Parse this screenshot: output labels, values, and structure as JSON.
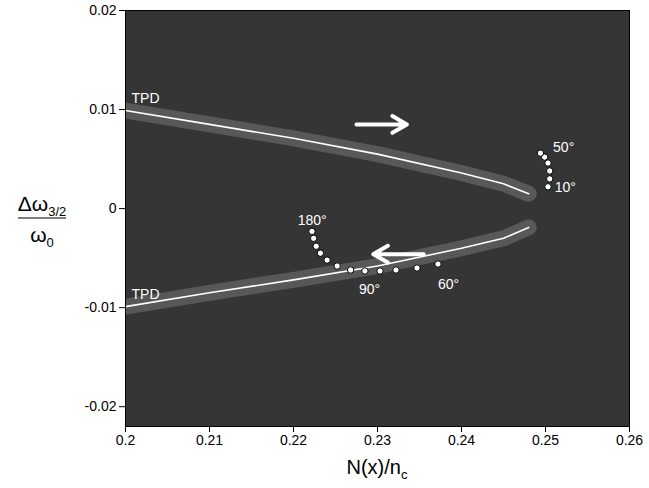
{
  "chart_data": {
    "type": "line",
    "xlabel": {
      "text": "N(x)/n",
      "sub": "c"
    },
    "ylabel": {
      "numerator": "Δω",
      "numerator_sub": "3/2",
      "denominator": "ω",
      "denominator_sub": "0"
    },
    "xlim": [
      0.2,
      0.26
    ],
    "xticks": [
      0.2,
      0.21,
      0.22,
      0.23,
      0.24,
      0.25,
      0.26
    ],
    "ylim": [
      -0.022,
      0.02
    ],
    "yticks": [
      -0.02,
      -0.01,
      0,
      0.01,
      0.02
    ],
    "grid": false,
    "series": [
      {
        "name": "TPD",
        "type": "line",
        "color": "#ffffff",
        "line_style": "solid",
        "x": [
          0.2,
          0.21,
          0.22,
          0.23,
          0.24,
          0.245,
          0.248
        ],
        "values": [
          0.0099,
          0.0085,
          0.0071,
          0.0055,
          0.0036,
          0.0025,
          0.0015
        ]
      },
      {
        "name": "TPD",
        "type": "line",
        "color": "#ffffff",
        "line_style": "solid",
        "x": [
          0.2,
          0.21,
          0.22,
          0.23,
          0.24,
          0.245,
          0.248
        ],
        "values": [
          -0.0099,
          -0.0085,
          -0.0072,
          -0.0058,
          -0.004,
          -0.003,
          -0.0019
        ]
      },
      {
        "type": "scatter",
        "color": "#ffffff",
        "marker": "circle",
        "x": [
          0.2503,
          0.2505,
          0.2505,
          0.2503,
          0.2499,
          0.2494
        ],
        "values": [
          0.0022,
          0.003,
          0.0038,
          0.0046,
          0.0052,
          0.0056
        ]
      },
      {
        "type": "scatter",
        "color": "#ffffff",
        "marker": "circle",
        "x": [
          0.2372,
          0.2347,
          0.2322,
          0.2303,
          0.2285,
          0.2268,
          0.2252,
          0.224,
          0.2232,
          0.2227,
          0.2224,
          0.2222
        ],
        "values": [
          -0.0056,
          -0.006,
          -0.0062,
          -0.0063,
          -0.0063,
          -0.0062,
          -0.0058,
          -0.0052,
          -0.0045,
          -0.0038,
          -0.003,
          -0.0023
        ]
      }
    ],
    "annotations": [
      {
        "text": "50°",
        "x": 0.2509,
        "y": 0.0062
      },
      {
        "text": "10°",
        "x": 0.2511,
        "y": 0.0021
      },
      {
        "text": "180°",
        "x": 0.2205,
        "y": -0.0012
      },
      {
        "text": "90°",
        "x": 0.2278,
        "y": -0.0082
      },
      {
        "text": "60°",
        "x": 0.2372,
        "y": -0.0077
      }
    ],
    "arrows": [
      {
        "x1": 0.2275,
        "y1": 0.0085,
        "x2": 0.2335,
        "y2": 0.0085
      },
      {
        "x1": 0.2355,
        "y1": -0.0046,
        "x2": 0.2295,
        "y2": -0.0046
      }
    ]
  }
}
